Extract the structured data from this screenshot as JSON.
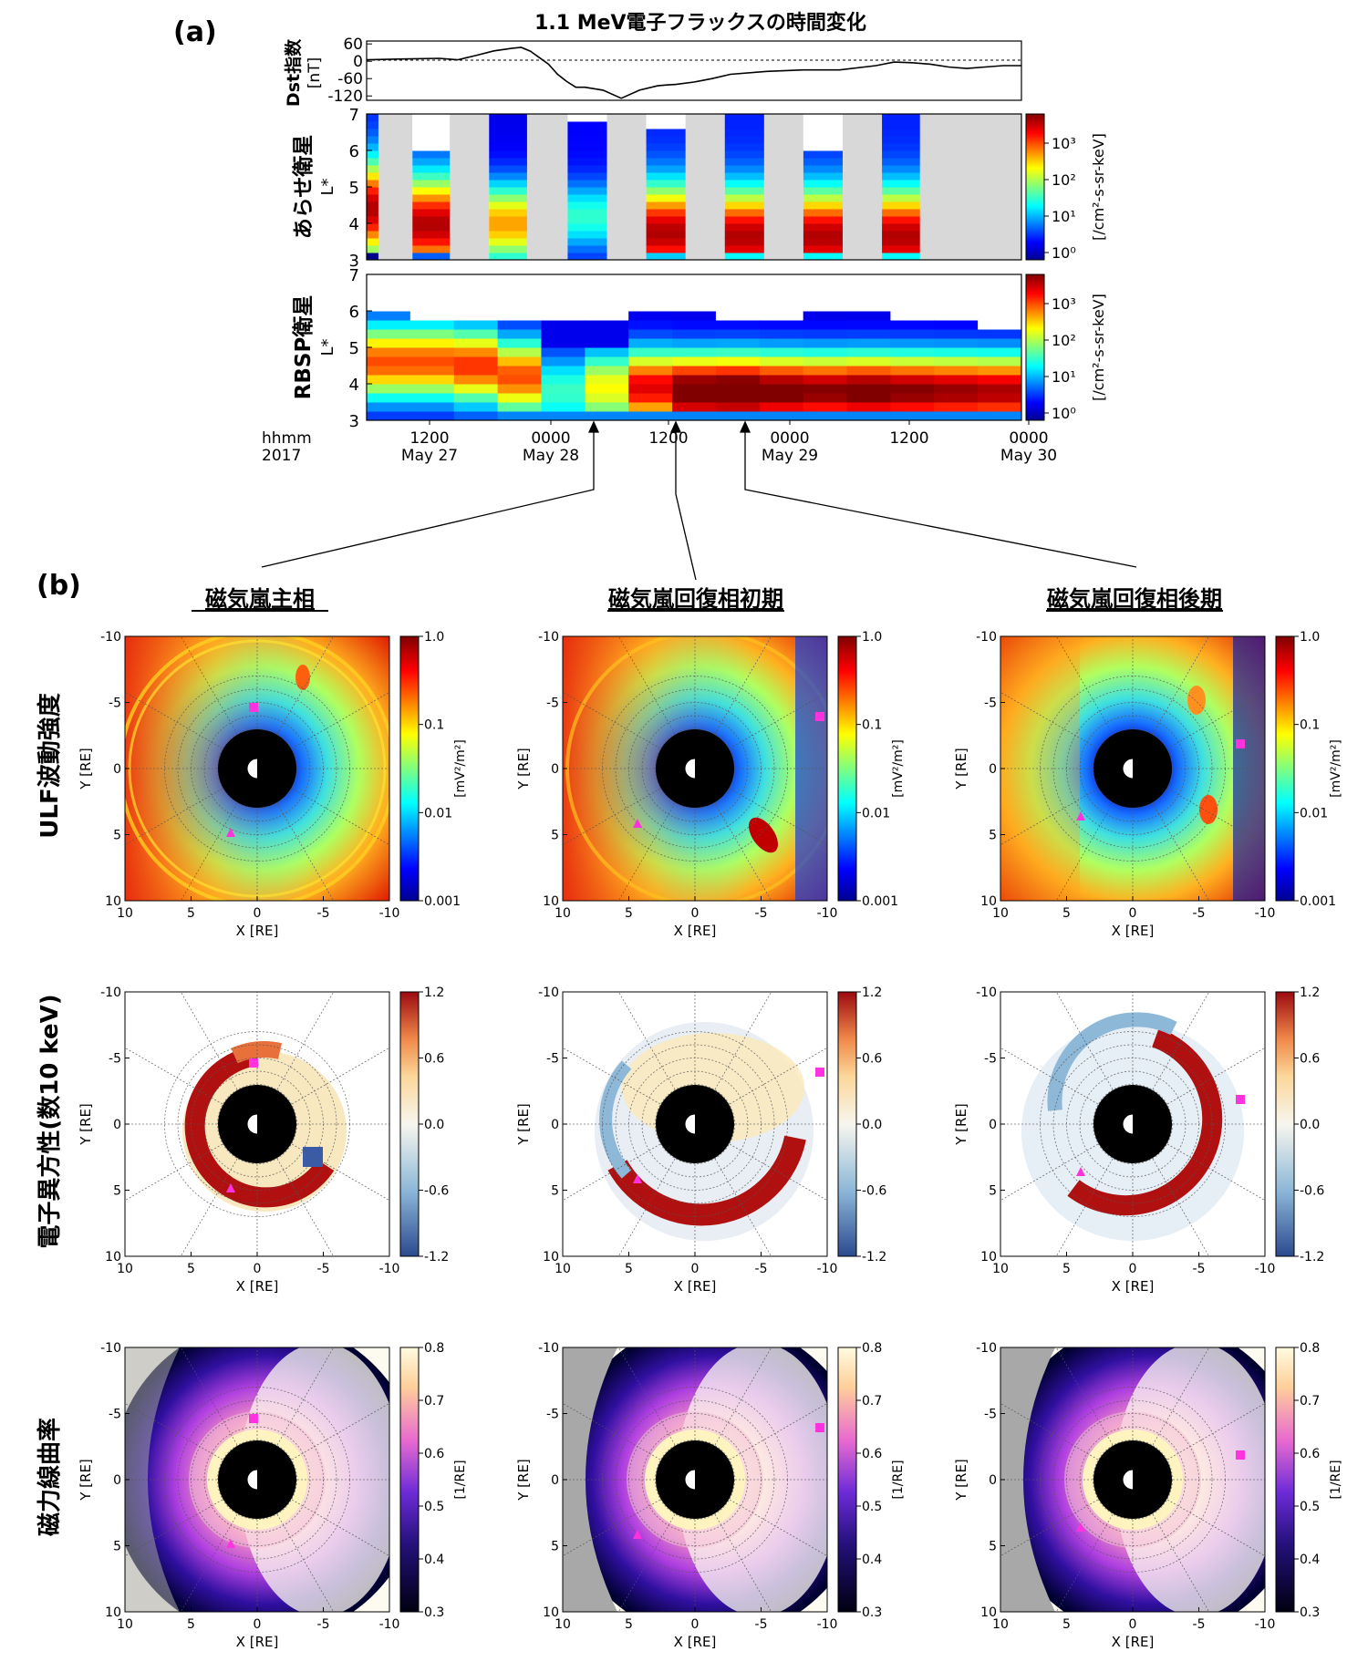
{
  "panel_a": {
    "label": "(a)",
    "title": "1.1 MeV電子フラックスの時間変化",
    "dst": {
      "ylabel1": "Dst指数",
      "ylabel2": "[nT]",
      "ticks": [
        "60",
        "0",
        "-60",
        "-120"
      ]
    },
    "arase": {
      "ylabel1": "あらせ衛星",
      "ylabel2": "L*"
    },
    "rbsp": {
      "ylabel1": "RBSP衛星",
      "ylabel2": "L*"
    },
    "lstar_ticks": [
      "7",
      "6",
      "5",
      "4",
      "3"
    ],
    "flux_cbar": {
      "unit": "[/cm²-s-sr-keV]",
      "ticks": [
        "10³",
        "10²",
        "10¹",
        "10⁰"
      ]
    },
    "time_axis": {
      "row1_label": "hhmm",
      "row2_label": "2017",
      "ticks": [
        {
          "t": "1200",
          "d": "May 27"
        },
        {
          "t": "0000",
          "d": "May 28"
        },
        {
          "t": "1200",
          "d": ""
        },
        {
          "t": "0000",
          "d": "May 29"
        },
        {
          "t": "1200",
          "d": ""
        },
        {
          "t": "0000",
          "d": "May 30"
        }
      ]
    }
  },
  "panel_b": {
    "label": "(b)",
    "columns": [
      "磁気嵐主相",
      "磁気嵐回復相初期",
      "磁気嵐回復相後期"
    ],
    "rows": [
      {
        "label": "ULF波動強度",
        "unit": "[mV²/m²]",
        "ticks": [
          "1.0",
          "0.1",
          "0.01",
          "0.001"
        ]
      },
      {
        "label": "電子異方性(数10 keV)",
        "unit": "",
        "ticks": [
          "1.2",
          "0.6",
          "0.0",
          "-0.6",
          "-1.2"
        ]
      },
      {
        "label": "磁力線曲率",
        "unit": "[1/RE]",
        "ticks": [
          "0.8",
          "0.7",
          "0.6",
          "0.5",
          "0.4",
          "0.3"
        ]
      }
    ],
    "x_ticks": [
      "10",
      "5",
      "0",
      "-5",
      "-10"
    ],
    "y_ticks": [
      "-10",
      "-5",
      "0",
      "5",
      "10"
    ],
    "xlabel": "X [RE]",
    "ylabel": "Y [RE]"
  },
  "chart_data": [
    {
      "type": "line",
      "title": "1.1 MeV電子フラックスの時間変化",
      "ylabel": "Dst指数 [nT]",
      "ylim": [
        -135,
        70
      ],
      "x_hours_since_2017_05_26_18UT": [
        0,
        4,
        8,
        10,
        12,
        14,
        16,
        17,
        18,
        20,
        21,
        22,
        23,
        24,
        26,
        28,
        30,
        32,
        33,
        34,
        36,
        38,
        40,
        44,
        48,
        52,
        56,
        58,
        60,
        62,
        64,
        66,
        68,
        70,
        72
      ],
      "series": [
        {
          "name": "Dst",
          "values": [
            5,
            8,
            10,
            5,
            20,
            36,
            45,
            48,
            35,
            -10,
            -45,
            -70,
            -90,
            -90,
            -100,
            -128,
            -100,
            -85,
            -82,
            -80,
            -72,
            -60,
            -45,
            -35,
            -30,
            -30,
            -15,
            -3,
            -5,
            -10,
            -20,
            -25,
            -20,
            -15,
            -15
          ]
        }
      ]
    },
    {
      "type": "heatmap",
      "title": "あらせ衛星",
      "ylabel": "L*",
      "ylim": [
        3,
        7
      ],
      "colorbar": "log10 flux [/cm²-s-sr-keV], 10⁰–10⁴",
      "note": "gray columns = no data"
    },
    {
      "type": "heatmap",
      "title": "RBSP衛星",
      "ylabel": "L*",
      "ylim": [
        3,
        7
      ],
      "colorbar": "log10 flux [/cm²-s-sr-keV], 10⁰–10⁴"
    }
  ]
}
